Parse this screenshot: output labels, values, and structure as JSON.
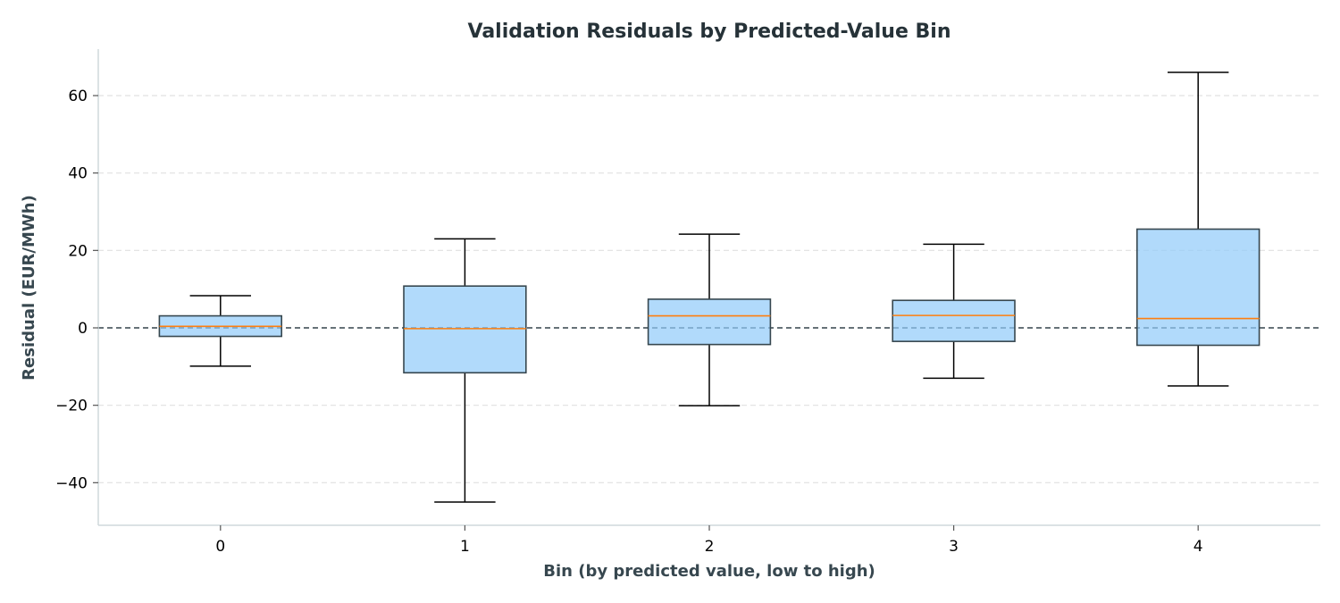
{
  "chart_data": {
    "type": "boxplot",
    "title": "Validation Residuals by Predicted-Value Bin",
    "xlabel": "Bin (by predicted value, low to high)",
    "ylabel": "Residual (EUR/MWh)",
    "ylim": [
      -51,
      72
    ],
    "yticks": [
      -40,
      -20,
      0,
      20,
      40,
      60
    ],
    "ytick_labels": [
      "−40",
      "−20",
      "0",
      "20",
      "40",
      "60"
    ],
    "categories": [
      "0",
      "1",
      "2",
      "3",
      "4"
    ],
    "boxes": [
      {
        "whisker_low": -9.9,
        "q1": -2.2,
        "median": 0.4,
        "q3": 3.1,
        "whisker_high": 8.3
      },
      {
        "whisker_low": -45.0,
        "q1": -11.6,
        "median": -0.2,
        "q3": 10.8,
        "whisker_high": 23.0
      },
      {
        "whisker_low": -20.1,
        "q1": -4.3,
        "median": 3.1,
        "q3": 7.4,
        "whisker_high": 24.2
      },
      {
        "whisker_low": -13.0,
        "q1": -3.5,
        "median": 3.2,
        "q3": 7.1,
        "whisker_high": 21.6
      },
      {
        "whisker_low": -15.0,
        "q1": -4.5,
        "median": 2.4,
        "q3": 25.5,
        "whisker_high": 66.0
      }
    ],
    "reference_line": 0,
    "grid": "y, dashed",
    "colors": {
      "box_fill": "#90caf9",
      "box_edge": "#37474f",
      "median": "#ff7f0e",
      "whisker": "#000000",
      "reference_line": "#37474f",
      "grid": "#e0e0e0",
      "spine": "#cfd8dc"
    }
  }
}
